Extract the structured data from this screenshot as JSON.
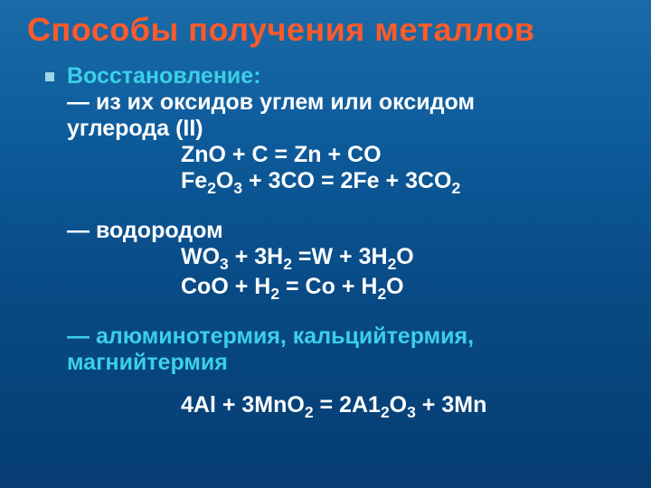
{
  "title": "Способы получения металлов",
  "title_color": "#ff5a2a",
  "heading_color": "#3bd0e8",
  "text_color": "#ffffff",
  "bullet_color": "#9fd4e8",
  "background_gradient": [
    "#1a6ba8",
    "#0d5a9a",
    "#084a85",
    "#063d72"
  ],
  "font_family": "Arial, sans-serif",
  "title_fontsize": 36,
  "body_fontsize": 25,
  "section1": {
    "heading": "Восстановление:",
    "sub1_line1": "— из их оксидов углем или оксидом",
    "sub1_line2": "углерода (II)",
    "eq1": "ZnO + C = Zn + CO",
    "eq2_pre": "Fe",
    "eq2_sub1": "2",
    "eq2_mid1": "O",
    "eq2_sub2": "3",
    "eq2_mid2": " + 3CO = 2Fe + 3CO",
    "eq2_sub3": "2"
  },
  "section2": {
    "heading": "— водородом",
    "eq1_pre": "WO",
    "eq1_sub1": "3",
    "eq1_mid1": " + 3H",
    "eq1_sub2": "2",
    "eq1_mid2": " =W + 3H",
    "eq1_sub3": "2",
    "eq1_end": "O",
    "eq2_pre": "CoO + H",
    "eq2_sub1": "2",
    "eq2_mid": " = Co + H",
    "eq2_sub2": "2",
    "eq2_end": "O"
  },
  "section3": {
    "line1": "— алюминотермия, кальцийтермия,",
    "line2": "магнийтермия",
    "eq_pre": "4Al + 3MnO",
    "eq_sub1": "2",
    "eq_mid1": " = 2A1",
    "eq_sub2": "2",
    "eq_mid2": "O",
    "eq_sub3": "3",
    "eq_end": " + 3Mn"
  }
}
